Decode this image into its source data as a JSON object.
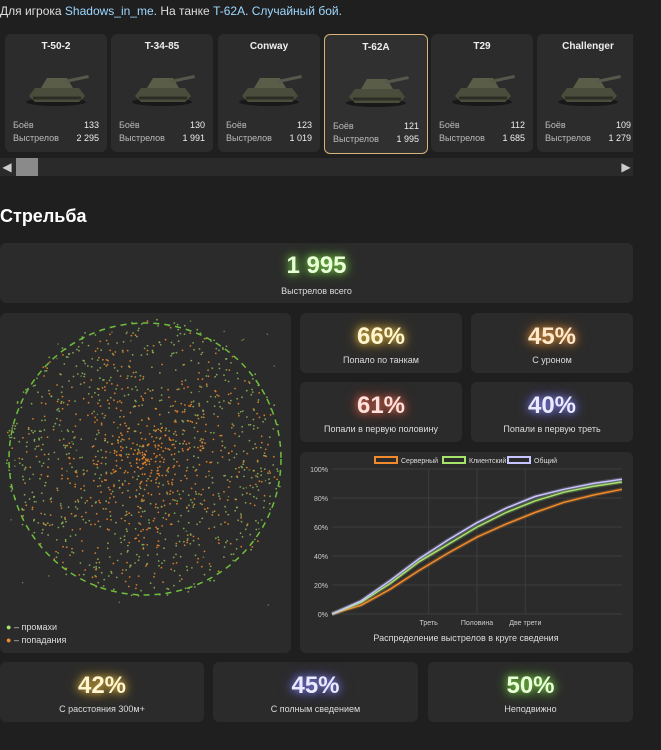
{
  "header": {
    "prefix": "Для игрока ",
    "player": "Shadows_in_me",
    "mid": ". На танке ",
    "tank": "T-62A",
    "suffix": ". ",
    "mode": "Случайный бой."
  },
  "tanks": [
    {
      "name": "T-50-2",
      "battles_label": "Боёв",
      "battles": "133",
      "shots_label": "Выстрелов",
      "shots": "2 295"
    },
    {
      "name": "T-34-85",
      "battles_label": "Боёв",
      "battles": "130",
      "shots_label": "Выстрелов",
      "shots": "1 991"
    },
    {
      "name": "Conway",
      "battles_label": "Боёв",
      "battles": "123",
      "shots_label": "Выстрелов",
      "shots": "1 019"
    },
    {
      "name": "T-62A",
      "battles_label": "Боёв",
      "battles": "121",
      "shots_label": "Выстрелов",
      "shots": "1 995"
    },
    {
      "name": "T29",
      "battles_label": "Боёв",
      "battles": "112",
      "shots_label": "Выстрелов",
      "shots": "1 685"
    },
    {
      "name": "Challenger",
      "battles_label": "Боёв",
      "battles": "109",
      "shots_label": "Выстрелов",
      "shots": "1 279"
    }
  ],
  "section_title": "Стрельба",
  "total": {
    "value": "1 995",
    "label": "Выстрелов всего"
  },
  "stats_right": [
    {
      "value": "66%",
      "label": "Попало по танкам"
    },
    {
      "value": "45%",
      "label": "С уроном"
    },
    {
      "value": "61%",
      "label": "Попали в первую половину"
    },
    {
      "value": "40%",
      "label": "Попали в первую треть"
    }
  ],
  "scatter_legend": {
    "miss": "– промахи",
    "hit": "– попадания"
  },
  "stats_bottom": [
    {
      "value": "42%",
      "label": "С расстояния 300м+"
    },
    {
      "value": "45%",
      "label": "С полным сведением"
    },
    {
      "value": "50%",
      "label": "Неподвижно"
    }
  ],
  "colors": {
    "server": "#f08a2c",
    "client": "#a6e36b",
    "total": "#c7c4ff",
    "ring": "#6dbf3c"
  },
  "chart_data": {
    "type": "line",
    "title": "Распределение выстрелов в круге сведения",
    "x": [
      0,
      0.1,
      0.2,
      0.3,
      0.4,
      0.5,
      0.6,
      0.7,
      0.8,
      0.9,
      1.0
    ],
    "x_ticks": [
      "Треть",
      "Половина",
      "Две трети"
    ],
    "y_ticks": [
      "0%",
      "20%",
      "40%",
      "60%",
      "80%",
      "100%"
    ],
    "ylim": [
      0,
      100
    ],
    "legend_position": "top",
    "series": [
      {
        "name": "Серверный",
        "values": [
          0,
          6,
          17,
          30,
          42,
          53,
          62,
          70,
          77,
          82,
          86
        ]
      },
      {
        "name": "Клиентский",
        "values": [
          0,
          8,
          21,
          36,
          48,
          60,
          70,
          78,
          84,
          88,
          91
        ]
      },
      {
        "name": "Общий",
        "values": [
          0,
          9,
          23,
          38,
          51,
          63,
          73,
          81,
          86,
          90,
          93
        ]
      }
    ]
  }
}
